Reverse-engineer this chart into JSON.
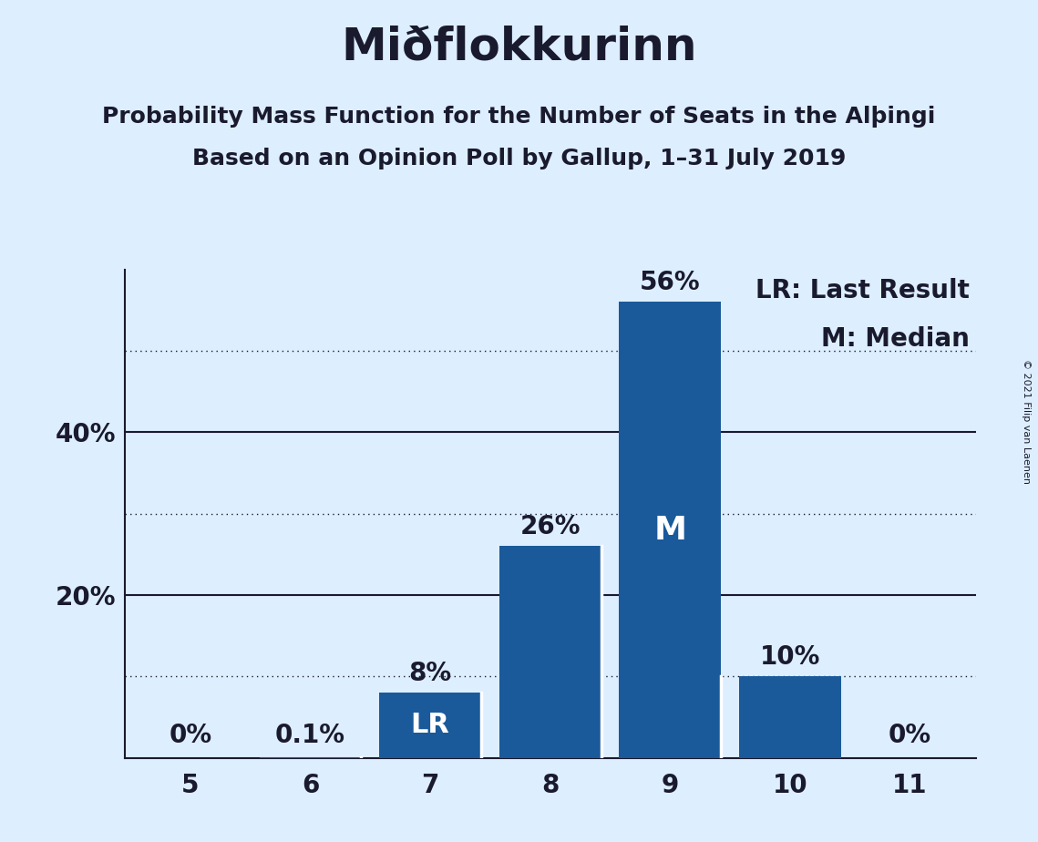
{
  "title": "Miðflokkurinn",
  "subtitle1": "Probability Mass Function for the Number of Seats in the Alþingi",
  "subtitle2": "Based on an Opinion Poll by Gallup, 1–31 July 2019",
  "copyright": "© 2021 Filip van Laenen",
  "categories": [
    5,
    6,
    7,
    8,
    9,
    10,
    11
  ],
  "values": [
    0.0,
    0.1,
    8.0,
    26.0,
    56.0,
    10.0,
    0.0
  ],
  "bar_color": "#1a5a9a",
  "background_color": "#ddeeff",
  "last_result_seat": 7,
  "median_seat": 9,
  "ylim": [
    0,
    60
  ],
  "solid_lines": [
    20,
    40
  ],
  "dotted_lines": [
    10,
    30,
    50
  ],
  "ytick_positions": [
    20,
    40
  ],
  "ytick_labels": [
    "20%",
    "40%"
  ],
  "legend_lr": "LR: Last Result",
  "legend_m": "M: Median",
  "bar_labels": [
    "0%",
    "0.1%",
    "8%",
    "26%",
    "56%",
    "10%",
    "0%"
  ],
  "lr_label": "LR",
  "m_label": "M",
  "title_fontsize": 36,
  "subtitle_fontsize": 18,
  "tick_fontsize": 20,
  "legend_fontsize": 20,
  "bar_label_fontsize": 20,
  "inner_label_fontsize_lr": 22,
  "inner_label_fontsize_m": 26,
  "dark_color": "#1a1a2e"
}
